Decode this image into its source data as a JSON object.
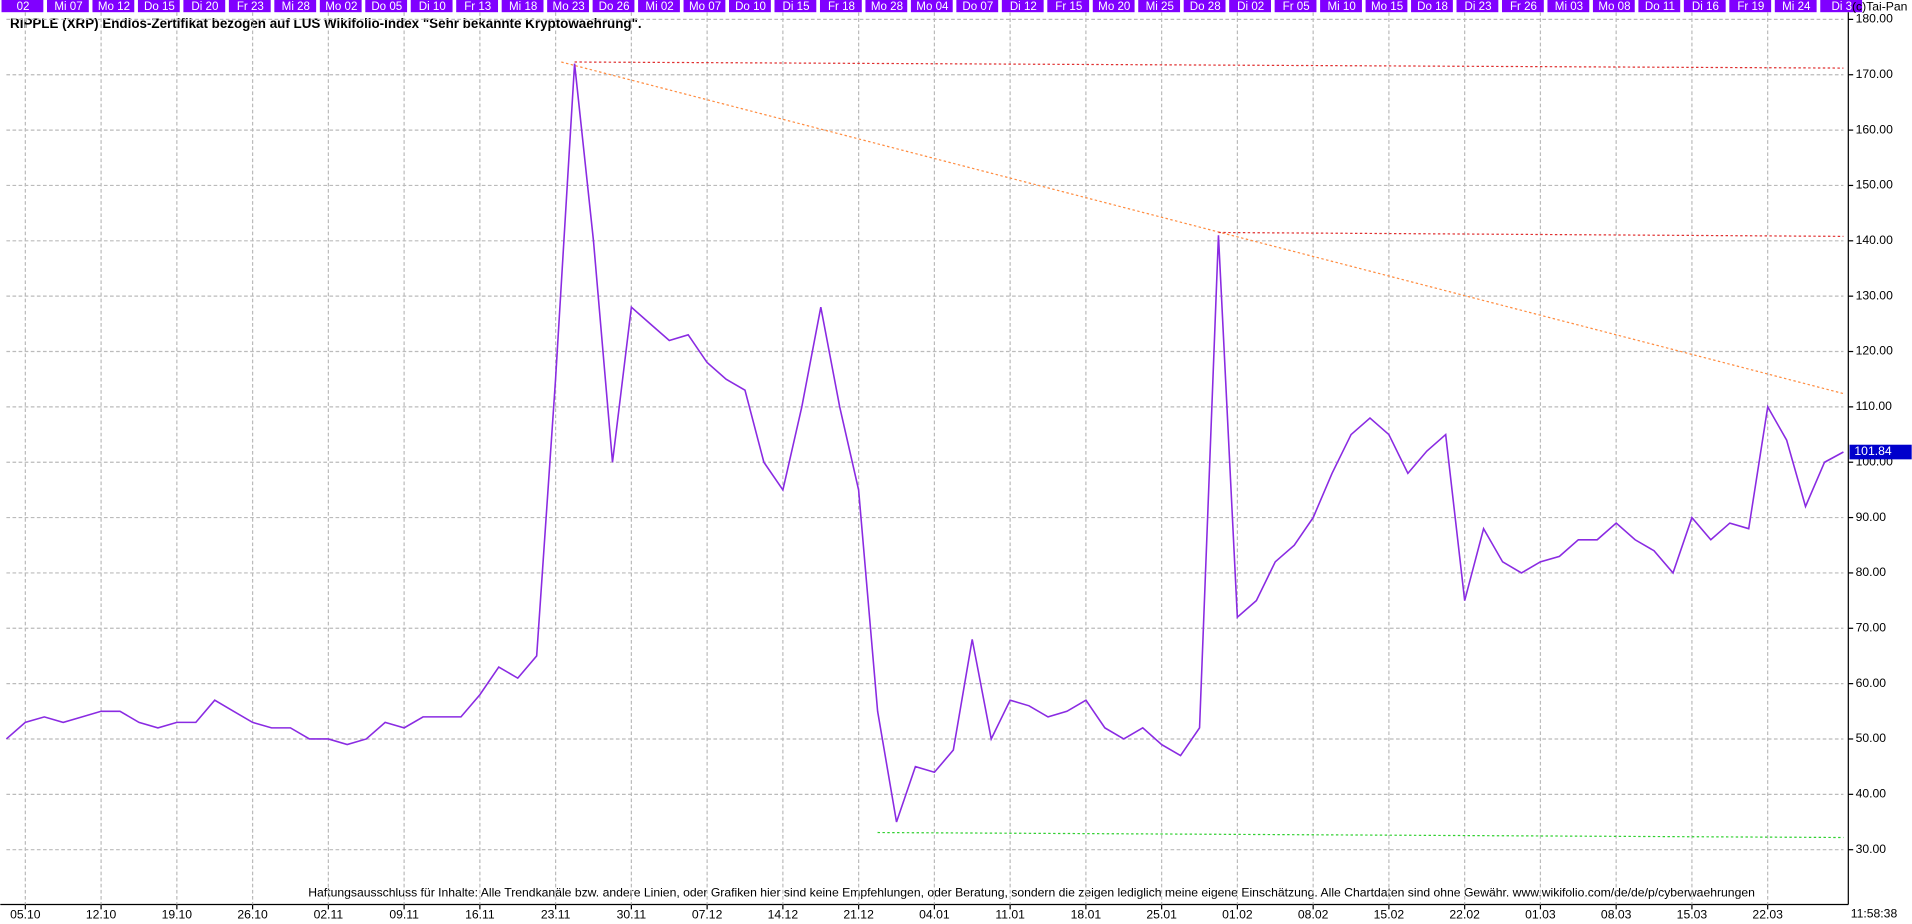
{
  "chart_data": {
    "type": "line",
    "title": "RIPPLE (XRP) Endlos-Zertifikat bezogen auf LUS Wikifolio-Index \"Sehr bekannte Kryptowaehrung\".",
    "copyright": "(c)Tai-Pan",
    "time": "11:58:38",
    "footnote": "Haftungsausschluss für Inhalte: Alle Trendkanäle bzw. andere Linien, oder Grafiken hier sind keine Empfehlungen, oder Beratung, sondern die zeigen lediglich meine eigene Einschätzung. Alle Chartdaten sind ohne Gewähr.  www.wikifolio.com/de/de/p/cyberwaehrungen",
    "top_labels": [
      "02",
      "Mi 07",
      "Mo 12",
      "Do 15",
      "Di 20",
      "Fr 23",
      "Mi 28",
      "Mo 02",
      "Do 05",
      "Di 10",
      "Fr 13",
      "Mi 18",
      "Mo 23",
      "Do 26",
      "Mi 02",
      "Mo 07",
      "Do 10",
      "Di 15",
      "Fr 18",
      "Mo 28",
      "Mo 04",
      "Do 07",
      "Di 12",
      "Fr 15",
      "Mo 20",
      "Mi 25",
      "Do 28",
      "Di 02",
      "Fr 05",
      "Mi 10",
      "Mo 15",
      "Do 18",
      "Di 23",
      "Fr 26",
      "Mi 03",
      "Mo 08",
      "Do 11",
      "Di 16",
      "Fr 19",
      "Mi 24",
      "Di 3"
    ],
    "categories": [
      null,
      "05.10",
      null,
      null,
      null,
      "12.10",
      null,
      null,
      null,
      "19.10",
      null,
      null,
      null,
      "26.10",
      null,
      null,
      null,
      "02.11",
      null,
      null,
      null,
      "09.11",
      null,
      null,
      null,
      "16.11",
      null,
      null,
      null,
      "23.11",
      null,
      null,
      null,
      "30.11",
      null,
      null,
      null,
      "07.12",
      null,
      null,
      null,
      "14.12",
      null,
      null,
      null,
      "21.12",
      null,
      null,
      null,
      "04.01",
      null,
      null,
      null,
      "11.01",
      null,
      null,
      null,
      "18.01",
      null,
      null,
      null,
      "25.01",
      null,
      null,
      null,
      "01.02",
      null,
      null,
      null,
      "08.02",
      null,
      null,
      null,
      "15.02",
      null,
      null,
      null,
      "22.02",
      null,
      null,
      null,
      "01.03",
      null,
      null,
      null,
      "08.03",
      null,
      null,
      null,
      "15.03",
      null,
      null,
      null,
      "22.03",
      null,
      null,
      null,
      null
    ],
    "values": [
      50,
      53,
      54,
      53,
      54,
      55,
      55,
      53,
      52,
      53,
      53,
      57,
      55,
      53,
      52,
      52,
      50,
      50,
      49,
      50,
      53,
      52,
      54,
      54,
      54,
      58,
      63,
      61,
      65,
      115,
      172,
      140,
      100,
      128,
      125,
      122,
      123,
      118,
      115,
      113,
      100,
      95,
      110,
      128,
      110,
      95,
      55,
      35,
      45,
      44,
      48,
      68,
      50,
      57,
      56,
      54,
      55,
      57,
      52,
      50,
      52,
      49,
      47,
      52,
      141,
      72,
      75,
      82,
      85,
      90,
      98,
      105,
      108,
      105,
      98,
      102,
      105,
      75,
      88,
      82,
      80,
      82,
      83,
      86,
      86,
      89,
      86,
      84,
      80,
      90,
      86,
      89,
      88,
      110,
      104,
      92,
      100,
      101.84
    ],
    "color": "#8a2be2",
    "ylim": [
      20.1,
      181.3
    ],
    "yticks": [
      {
        "value": 30,
        "label": "30.00"
      },
      {
        "value": 40,
        "label": "40.00"
      },
      {
        "value": 50,
        "label": "50.00"
      },
      {
        "value": 60,
        "label": "60.00"
      },
      {
        "value": 70,
        "label": "70.00"
      },
      {
        "value": 80,
        "label": "80.00"
      },
      {
        "value": 90,
        "label": "90.00"
      },
      {
        "value": 100,
        "label": "100.00"
      },
      {
        "value": 110,
        "label": "110.00"
      },
      {
        "value": 120,
        "label": "120.00"
      },
      {
        "value": 130,
        "label": "130.00"
      },
      {
        "value": 140,
        "label": "140.00"
      },
      {
        "value": 150,
        "label": "150.00"
      },
      {
        "value": 160,
        "label": "160.00"
      },
      {
        "value": 170,
        "label": "170.00"
      },
      {
        "value": 180,
        "label": "180.00"
      }
    ],
    "grid": true,
    "trend_lines": [
      {
        "color": "#e03030",
        "values": [
          172.3,
          171.2
        ]
      },
      {
        "color": "#ff8c40",
        "values": [
          172.3,
          112.4
        ]
      },
      {
        "color": "#e03030",
        "values": [
          141.5,
          140.8
        ]
      },
      {
        "color": "#30d030",
        "values": [
          33.1,
          32.2
        ]
      }
    ],
    "last_value_color": "#0000cc"
  }
}
